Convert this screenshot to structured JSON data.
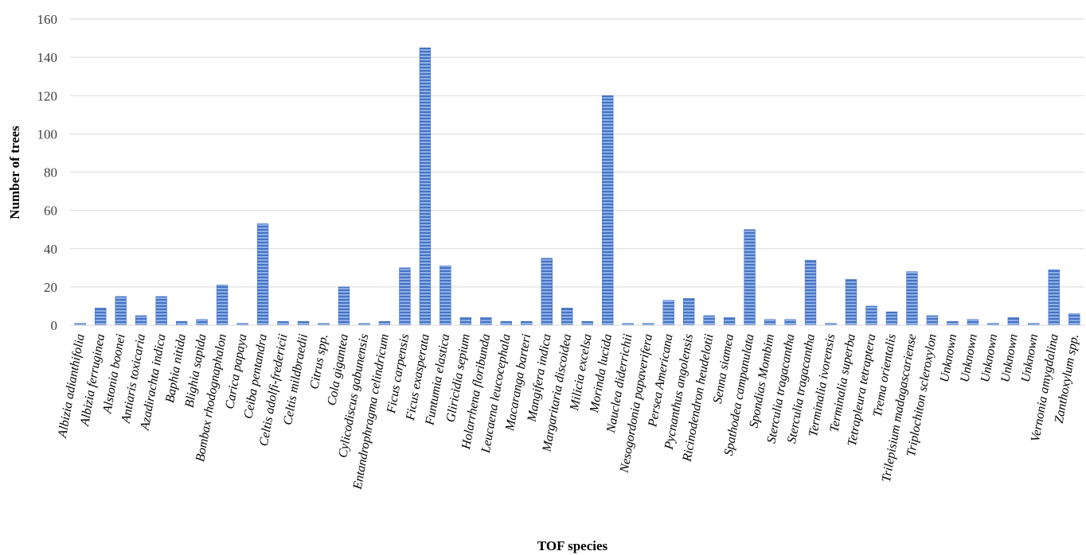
{
  "chart_data": {
    "type": "bar",
    "title": "",
    "xlabel": "TOF species",
    "ylabel": "Number of trees",
    "ylim": [
      0,
      160
    ],
    "yticks": [
      "0",
      "20",
      "40",
      "60",
      "80",
      "100",
      "120",
      "140",
      "160"
    ],
    "grid": true,
    "legend": "none",
    "bar_color": "#4472c4",
    "bar_stripe_color": "#8fb0e6",
    "grid_color": "#d9d9d9",
    "categories": [
      "Albizia adianthifolia",
      "Albizia ferruginea",
      "Alstonia boonei",
      "Antiaris toxicaria",
      "Azadirachta indica",
      "Baphia nitida",
      "Blighia sapida",
      "Bombax rhodognaphalon",
      "Carica papaya",
      "Ceiba pentandra",
      "Celtis adolfi-fredericii",
      "Celtis mildbraedii",
      "Citrus spp.",
      "Cola gigantea",
      "Cylicodiscus gabunensis",
      "Entandrophragma celindricum",
      "Ficus carpensis",
      "Ficus exasperata",
      "Funtumia elastica",
      "Gliricidia sepium",
      "Holarrhena floribunda",
      "Leucaena leucocephala",
      "Macaranga barteri",
      "Mangifera indica",
      "Margaritaria discoidea",
      "Milicia excelsa",
      "Morinda lucida",
      "Nauclea diderrichii",
      "Nesogordonia papaverifera",
      "Persea Americana",
      "Pycnanthus angolensis",
      "Ricinodendron heudelotii",
      "Senna siamea",
      "Spathodea campanulata",
      "Spondias Mombim",
      "Sterculia tragacantha",
      "Sterculia tragacantha",
      "Terminalia ivorensis",
      "Terminalia superba",
      "Tetrapleura tetraptera",
      "Trema orientalis",
      "Trilepisium madagascariense",
      "Triplochiton scleroxylon",
      "Unknown",
      "Unknown",
      "Unknown",
      "Unknown",
      "Unknown",
      "Vernonia amygdalina",
      "Zanthoxylum spp."
    ],
    "values": [
      1,
      9,
      15,
      5,
      15,
      2,
      3,
      21,
      1,
      53,
      2,
      2,
      1,
      20,
      1,
      2,
      30,
      145,
      31,
      4,
      4,
      2,
      2,
      35,
      9,
      2,
      120,
      1,
      1,
      13,
      14,
      5,
      4,
      50,
      3,
      3,
      34,
      1,
      24,
      10,
      7,
      28,
      5,
      2,
      3,
      1,
      4,
      1,
      29,
      6
    ]
  }
}
